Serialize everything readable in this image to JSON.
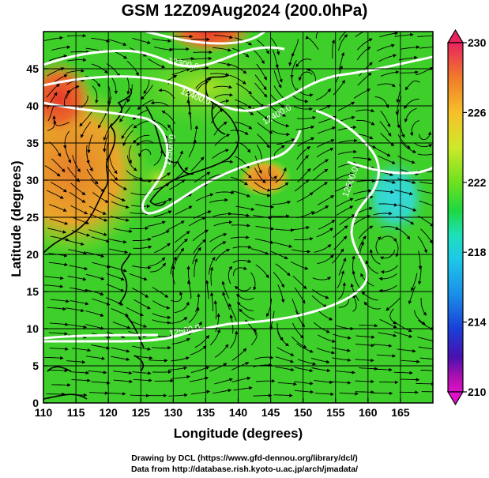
{
  "title": "GSM 12Z09Aug2024 (200.0hPa)",
  "axes": {
    "x_label": "Longitude (degrees)",
    "y_label": "Latitude  (degrees)",
    "x_ticks": [
      "110",
      "115",
      "120",
      "125",
      "130",
      "135",
      "140",
      "145",
      "150",
      "155",
      "160",
      "165"
    ],
    "y_ticks": [
      "0",
      "5",
      "10",
      "15",
      "20",
      "25",
      "30",
      "35",
      "40",
      "45"
    ]
  },
  "colorbar": {
    "labels": [
      "230",
      "226",
      "222",
      "218",
      "214",
      "210"
    ],
    "colors": [
      "#e8245e",
      "#f07a2a",
      "#f6c02a",
      "#cfe92a",
      "#6ee01e",
      "#1ed840",
      "#1ee0b8",
      "#1ec8e8",
      "#1a8fe8",
      "#1a3fd8",
      "#4a10b0",
      "#b010b0",
      "#e010c8"
    ]
  },
  "contours": {
    "labels": [
      "12300.0",
      "12400.0",
      "12500.0",
      "12500.0",
      "12400.0",
      "12500.0",
      "12500.0"
    ]
  },
  "field_colors": {
    "green": "#3ecf2a",
    "yellow_green": "#9ee026",
    "orange": "#e8802a",
    "red": "#e83a2a",
    "cyan": "#35d8c8"
  },
  "credits": {
    "line1": "Drawing by DCL (https://www.gfd-dennou.org/library/dcl/)",
    "line2": "Data from http://database.rish.kyoto-u.ac.jp/arch/jmadata/"
  }
}
